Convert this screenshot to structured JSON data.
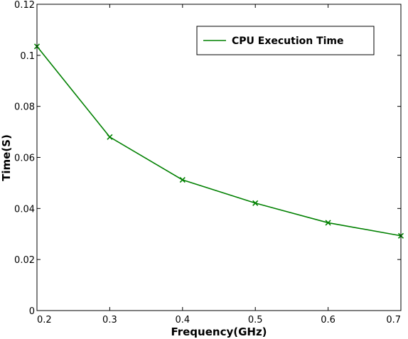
{
  "chart_data": {
    "type": "line",
    "xlabel": "Frequency(GHz)",
    "ylabel": "Time(S)",
    "xlim": [
      0.2,
      0.7
    ],
    "ylim": [
      0,
      0.12
    ],
    "x_ticks": [
      "0.2",
      "0.3",
      "0.4",
      "0.5",
      "0.6",
      "0.7"
    ],
    "y_ticks": [
      "0",
      "0.02",
      "0.04",
      "0.06",
      "0.08",
      "0.1",
      "0.12"
    ],
    "x_tick_values": [
      0.2,
      0.3,
      0.4,
      0.5,
      0.6,
      0.7
    ],
    "y_tick_values": [
      0,
      0.02,
      0.04,
      0.06,
      0.08,
      0.1,
      0.12
    ],
    "grid": false,
    "legend_position": "top-right",
    "series": [
      {
        "name": "CPU Execution Time",
        "color": "#008000",
        "marker": "x",
        "x": [
          0.2,
          0.3,
          0.4,
          0.5,
          0.6,
          0.7
        ],
        "values": [
          0.1035,
          0.068,
          0.0512,
          0.0421,
          0.0344,
          0.0293
        ]
      }
    ]
  }
}
